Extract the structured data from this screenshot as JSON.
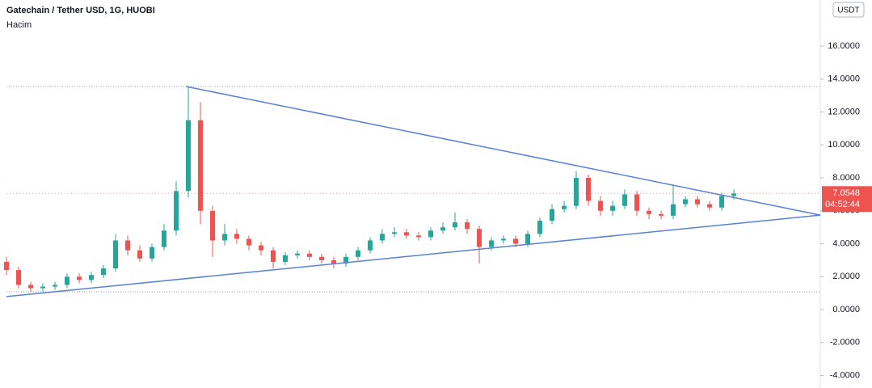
{
  "chart_data": {
    "type": "candlestick",
    "title": "Gatechain / Tether USD, 1G, HUOBI",
    "subtitle": "Hacim",
    "currency": "USDT",
    "categories": [
      null,
      null,
      null,
      null,
      null,
      null,
      null,
      null,
      null,
      null,
      null,
      null,
      null,
      null,
      null,
      null,
      null,
      null,
      null,
      null,
      null,
      null,
      null,
      null,
      null,
      null,
      null,
      null,
      null,
      null,
      null,
      null,
      null,
      null,
      null,
      null,
      null,
      null,
      null,
      null,
      null,
      null,
      null,
      null,
      null,
      null,
      null,
      null,
      null,
      null,
      null,
      null,
      null,
      null,
      null,
      null,
      null,
      null,
      null,
      null,
      null
    ],
    "open": [
      2.9,
      2.4,
      1.5,
      1.3,
      1.4,
      1.5,
      2.0,
      1.8,
      2.1,
      2.5,
      4.2,
      3.6,
      3.1,
      3.8,
      4.8,
      7.2,
      11.5,
      6.0,
      4.2,
      4.6,
      4.3,
      3.9,
      3.6,
      2.9,
      3.3,
      3.4,
      3.2,
      3.0,
      2.8,
      3.2,
      3.6,
      4.2,
      4.6,
      4.7,
      4.5,
      4.4,
      4.8,
      5.0,
      5.3,
      4.9,
      3.8,
      4.2,
      4.3,
      4.0,
      4.6,
      5.4,
      6.1,
      6.3,
      8.0,
      6.6,
      6.0,
      6.3,
      7.0,
      6.0,
      5.8,
      5.7,
      6.4,
      6.7,
      6.4,
      6.2,
      6.9
    ],
    "high": [
      3.2,
      2.6,
      1.7,
      1.6,
      1.7,
      2.2,
      2.2,
      2.3,
      2.7,
      4.6,
      4.5,
      3.9,
      4.0,
      5.2,
      7.8,
      13.5,
      12.6,
      6.3,
      5.2,
      4.9,
      4.5,
      4.1,
      3.8,
      3.5,
      3.6,
      3.6,
      3.4,
      3.2,
      3.4,
      3.8,
      4.4,
      4.9,
      5.0,
      4.9,
      4.7,
      5.0,
      5.3,
      5.9,
      5.5,
      5.1,
      4.4,
      4.5,
      4.5,
      4.8,
      5.6,
      6.4,
      6.6,
      8.4,
      8.2,
      6.9,
      6.6,
      7.3,
      7.2,
      6.2,
      6.0,
      7.6,
      6.9,
      6.9,
      6.6,
      7.1,
      7.3
    ],
    "low": [
      2.1,
      1.3,
      1.1,
      1.1,
      1.2,
      1.3,
      1.6,
      1.6,
      1.9,
      2.3,
      3.3,
      2.9,
      2.9,
      3.6,
      4.5,
      6.8,
      5.2,
      3.2,
      3.9,
      4.0,
      3.6,
      3.3,
      2.5,
      2.7,
      3.1,
      3.0,
      2.8,
      2.5,
      2.6,
      3.0,
      3.4,
      4.0,
      4.4,
      4.3,
      4.2,
      4.2,
      4.6,
      4.8,
      4.6,
      2.8,
      3.6,
      4.0,
      3.8,
      3.8,
      4.4,
      5.2,
      5.9,
      6.1,
      6.3,
      5.7,
      5.7,
      6.1,
      5.7,
      5.5,
      5.5,
      5.5,
      6.2,
      6.2,
      6.0,
      6.0,
      6.7
    ],
    "close": [
      2.4,
      1.5,
      1.3,
      1.4,
      1.5,
      2.0,
      1.8,
      2.1,
      2.5,
      4.2,
      3.6,
      3.1,
      3.8,
      4.8,
      7.2,
      11.5,
      6.0,
      4.2,
      4.6,
      4.3,
      3.9,
      3.6,
      2.9,
      3.3,
      3.4,
      3.2,
      3.0,
      2.8,
      3.2,
      3.6,
      4.2,
      4.6,
      4.7,
      4.5,
      4.4,
      4.8,
      5.0,
      5.3,
      4.9,
      3.8,
      4.2,
      4.3,
      4.0,
      4.6,
      5.4,
      6.1,
      6.3,
      8.0,
      6.6,
      6.0,
      6.3,
      7.0,
      6.0,
      5.8,
      5.7,
      6.4,
      6.7,
      6.4,
      6.2,
      6.9,
      7.05
    ],
    "up_color": "#26a69a",
    "down_color": "#ef5350",
    "xlim": [
      0,
      67.13
    ],
    "ylim": [
      -4.76,
      18.8
    ],
    "yticks": [
      {
        "value": -4,
        "label": "-4.0000"
      },
      {
        "value": -2,
        "label": "-2.0000"
      },
      {
        "value": 0,
        "label": "0.0000"
      },
      {
        "value": 2,
        "label": "2.0000"
      },
      {
        "value": 4,
        "label": "4.0000"
      },
      {
        "value": 6,
        "label": "6.0000"
      },
      {
        "value": 8,
        "label": "8.0000"
      },
      {
        "value": 10,
        "label": "10.0000"
      },
      {
        "value": 12,
        "label": "12.0000"
      },
      {
        "value": 14,
        "label": "14.0000"
      },
      {
        "value": 16,
        "label": "16.0000"
      }
    ],
    "trendlines": [
      {
        "x": [
          14.8,
          67.13
        ],
        "y": [
          13.55,
          5.74
        ]
      },
      {
        "x": [
          0,
          67.13
        ],
        "y": [
          0.79,
          5.74
        ]
      }
    ],
    "trendline_color": "#5b7fd4",
    "levels": [
      13.55,
      1.08
    ],
    "last_price": {
      "value": 7.0548,
      "label": "7.0548"
    },
    "countdown": "04:52:44"
  }
}
